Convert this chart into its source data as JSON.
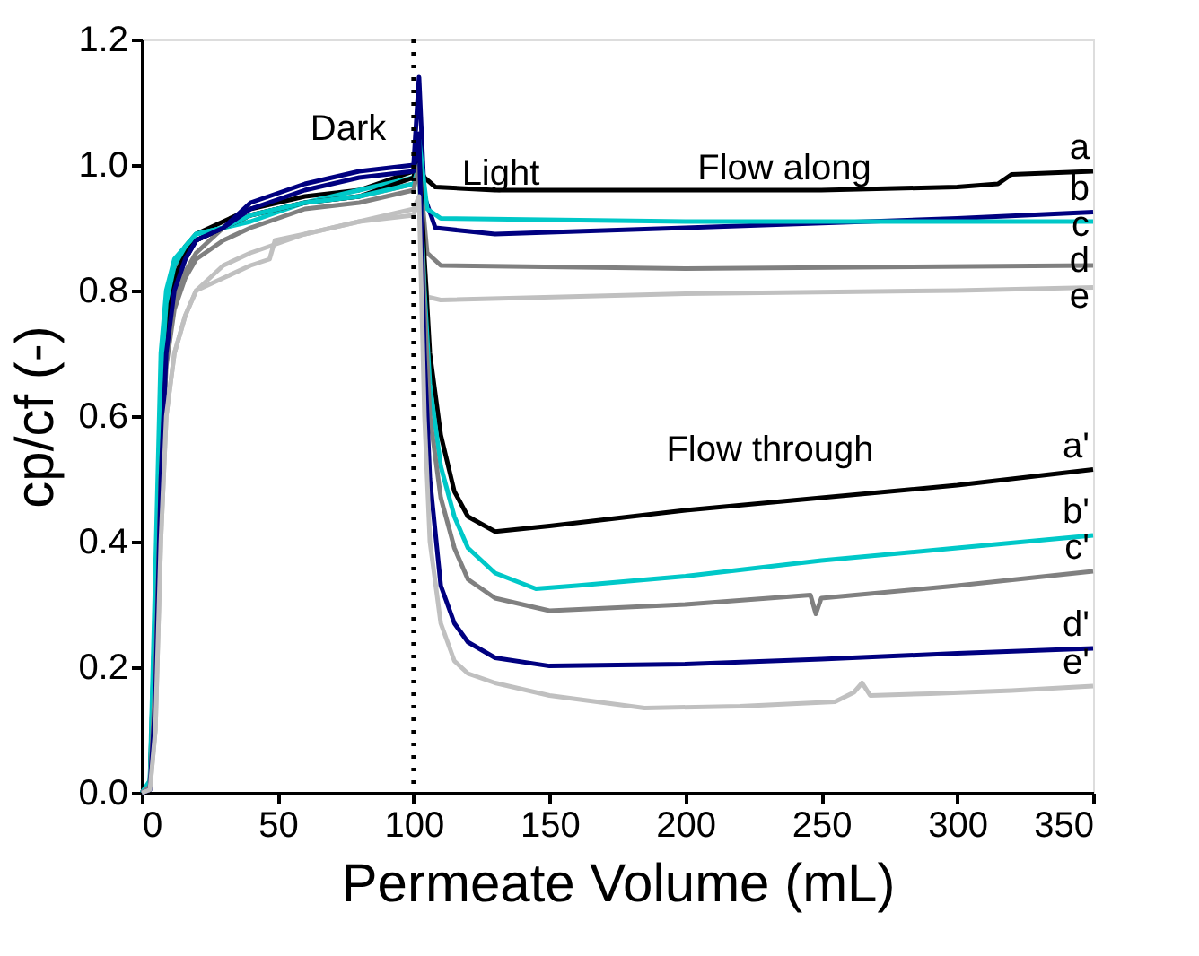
{
  "chart_data": {
    "type": "line",
    "xlabel": "Permeate Volume (mL)",
    "ylabel": "cp/cf (-)",
    "xlim": [
      0,
      350
    ],
    "ylim": [
      0,
      1.2
    ],
    "xticks": [
      0,
      50,
      100,
      150,
      200,
      250,
      300,
      350
    ],
    "yticks": [
      {
        "value": 0,
        "label": "0.0"
      },
      {
        "value": 0.2,
        "label": "0.2"
      },
      {
        "value": 0.4,
        "label": "0.4"
      },
      {
        "value": 0.6,
        "label": "0.6"
      },
      {
        "value": 0.8,
        "label": "0.8"
      },
      {
        "value": 1.0,
        "label": "1.0"
      },
      {
        "value": 1.2,
        "label": "1.2"
      }
    ],
    "grid": false,
    "marker": "none",
    "line_style": "solid",
    "series": [
      {
        "name": "a",
        "color": "#000000",
        "x": [
          0,
          3,
          5,
          7,
          9,
          12,
          16,
          20,
          30,
          40,
          60,
          80,
          100,
          102,
          104,
          108,
          130,
          200,
          250,
          300,
          315,
          320,
          350
        ],
        "values": [
          0,
          0.01,
          0.3,
          0.65,
          0.78,
          0.84,
          0.87,
          0.89,
          0.91,
          0.93,
          0.95,
          0.96,
          0.99,
          1.0,
          0.98,
          0.965,
          0.96,
          0.96,
          0.96,
          0.965,
          0.97,
          0.985,
          0.99
        ]
      },
      {
        "name": "b",
        "color": "#000080",
        "x": [
          0,
          3,
          5,
          7,
          9,
          12,
          16,
          20,
          30,
          35,
          40,
          60,
          80,
          100,
          102,
          104,
          108,
          130,
          200,
          300,
          350
        ],
        "values": [
          0,
          0.005,
          0.15,
          0.5,
          0.7,
          0.8,
          0.85,
          0.88,
          0.9,
          0.92,
          0.94,
          0.97,
          0.99,
          1.0,
          1.14,
          0.95,
          0.9,
          0.89,
          0.9,
          0.915,
          0.925
        ]
      },
      {
        "name": "c",
        "color": "#00c8c8",
        "x": [
          0,
          3,
          5,
          7,
          9,
          12,
          16,
          20,
          30,
          40,
          60,
          80,
          100,
          102,
          105,
          110,
          200,
          350
        ],
        "values": [
          0,
          0.02,
          0.35,
          0.7,
          0.8,
          0.85,
          0.87,
          0.89,
          0.9,
          0.91,
          0.94,
          0.96,
          0.98,
          1.04,
          0.93,
          0.915,
          0.91,
          0.91
        ]
      },
      {
        "name": "d",
        "color": "#808080",
        "x": [
          0,
          3,
          5,
          7,
          9,
          12,
          16,
          20,
          30,
          40,
          60,
          80,
          100,
          102,
          105,
          110,
          200,
          350
        ],
        "values": [
          0,
          0.01,
          0.2,
          0.55,
          0.7,
          0.78,
          0.83,
          0.86,
          0.9,
          0.92,
          0.94,
          0.95,
          0.97,
          1.0,
          0.86,
          0.84,
          0.835,
          0.84
        ]
      },
      {
        "name": "e",
        "color": "#c0c0c0",
        "x": [
          0,
          3,
          5,
          7,
          9,
          12,
          16,
          20,
          30,
          40,
          47,
          49,
          60,
          80,
          100,
          102,
          105,
          110,
          200,
          300,
          350
        ],
        "values": [
          0,
          0.005,
          0.1,
          0.4,
          0.6,
          0.7,
          0.76,
          0.8,
          0.82,
          0.84,
          0.85,
          0.88,
          0.89,
          0.91,
          0.93,
          0.95,
          0.79,
          0.785,
          0.795,
          0.8,
          0.805
        ]
      },
      {
        "name": "a'",
        "color": "#000000",
        "x": [
          0,
          3,
          5,
          7,
          9,
          12,
          16,
          20,
          30,
          40,
          60,
          80,
          100,
          102,
          104,
          106,
          110,
          115,
          120,
          130,
          150,
          200,
          250,
          300,
          350
        ],
        "values": [
          0,
          0.01,
          0.25,
          0.6,
          0.75,
          0.82,
          0.86,
          0.88,
          0.9,
          0.92,
          0.94,
          0.95,
          0.98,
          1.02,
          0.85,
          0.7,
          0.57,
          0.48,
          0.44,
          0.416,
          0.425,
          0.45,
          0.47,
          0.49,
          0.515
        ]
      },
      {
        "name": "b'",
        "color": "#00c8c8",
        "x": [
          0,
          3,
          5,
          7,
          9,
          12,
          16,
          20,
          30,
          40,
          60,
          80,
          100,
          102,
          104,
          106,
          110,
          115,
          120,
          130,
          145,
          160,
          200,
          250,
          300,
          350
        ],
        "values": [
          0,
          0.015,
          0.3,
          0.65,
          0.78,
          0.84,
          0.87,
          0.89,
          0.9,
          0.92,
          0.94,
          0.95,
          0.97,
          1.0,
          0.8,
          0.65,
          0.52,
          0.44,
          0.39,
          0.35,
          0.325,
          0.33,
          0.345,
          0.37,
          0.39,
          0.41
        ]
      },
      {
        "name": "c'",
        "color": "#808080",
        "x": [
          0,
          3,
          5,
          7,
          9,
          12,
          16,
          20,
          30,
          40,
          60,
          80,
          100,
          102,
          104,
          106,
          110,
          115,
          120,
          130,
          150,
          200,
          246,
          248,
          250,
          300,
          350
        ],
        "values": [
          0,
          0.01,
          0.18,
          0.5,
          0.68,
          0.77,
          0.82,
          0.85,
          0.88,
          0.9,
          0.93,
          0.94,
          0.96,
          1.0,
          0.78,
          0.6,
          0.47,
          0.39,
          0.34,
          0.31,
          0.29,
          0.3,
          0.315,
          0.285,
          0.31,
          0.33,
          0.353
        ]
      },
      {
        "name": "d'",
        "color": "#000080",
        "x": [
          0,
          3,
          5,
          7,
          9,
          12,
          16,
          20,
          30,
          40,
          60,
          80,
          100,
          102,
          104,
          106,
          110,
          115,
          120,
          130,
          150,
          200,
          250,
          300,
          350
        ],
        "values": [
          0,
          0.005,
          0.15,
          0.5,
          0.7,
          0.8,
          0.85,
          0.88,
          0.9,
          0.93,
          0.96,
          0.98,
          0.99,
          1.05,
          0.7,
          0.5,
          0.33,
          0.27,
          0.24,
          0.215,
          0.202,
          0.205,
          0.213,
          0.222,
          0.23
        ]
      },
      {
        "name": "e'",
        "color": "#c0c0c0",
        "x": [
          0,
          3,
          5,
          7,
          9,
          12,
          16,
          20,
          30,
          40,
          60,
          80,
          100,
          102,
          104,
          106,
          110,
          115,
          120,
          130,
          150,
          185,
          220,
          255,
          262,
          265,
          268,
          290,
          320,
          350
        ],
        "values": [
          0,
          0.005,
          0.1,
          0.4,
          0.6,
          0.7,
          0.76,
          0.8,
          0.84,
          0.86,
          0.89,
          0.91,
          0.92,
          0.95,
          0.6,
          0.4,
          0.27,
          0.21,
          0.19,
          0.175,
          0.155,
          0.135,
          0.138,
          0.145,
          0.16,
          0.175,
          0.155,
          0.158,
          0.163,
          0.17
        ]
      }
    ],
    "ref_lines": [
      {
        "axis": "x",
        "value": 100,
        "label": null,
        "color": "#000000",
        "line_style": "dotted"
      }
    ],
    "annotations": [
      "Dark",
      "Light",
      "Flow along",
      "Flow through"
    ]
  }
}
